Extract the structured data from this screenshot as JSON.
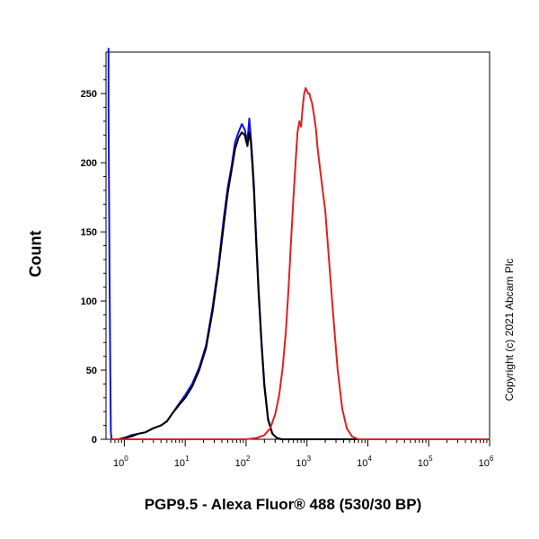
{
  "chart_data": {
    "type": "line",
    "title": "",
    "xlabel": "PGP9.5 - Alexa Fluor® 488 (530/30 BP)",
    "ylabel": "Count",
    "x_scale": "log",
    "x_ticks": [
      {
        "value": 1,
        "base": "10",
        "exp": "0"
      },
      {
        "value": 10,
        "base": "10",
        "exp": "1"
      },
      {
        "value": 100,
        "base": "10",
        "exp": "2"
      },
      {
        "value": 1000,
        "base": "10",
        "exp": "3"
      },
      {
        "value": 10000,
        "base": "10",
        "exp": "4"
      },
      {
        "value": 100000,
        "base": "10",
        "exp": "5"
      },
      {
        "value": 1000000,
        "base": "10",
        "exp": "6"
      }
    ],
    "y_ticks": [
      "0",
      "50",
      "100",
      "150",
      "200",
      "250"
    ],
    "xlim": [
      0.5,
      1000000
    ],
    "ylim": [
      0,
      280
    ],
    "grid": false,
    "series": [
      {
        "color": "#1010e0",
        "x": [
          0.55,
          0.55,
          0.57,
          0.59,
          0.6,
          0.62,
          0.65,
          0.7,
          0.8,
          1.0,
          1.3,
          1.7,
          2.2,
          3,
          4,
          5,
          6,
          8,
          10,
          13,
          17,
          22,
          28,
          35,
          43,
          50,
          58,
          66,
          75,
          85,
          95,
          105,
          113,
          120,
          128,
          135,
          145,
          160,
          180,
          200,
          230,
          270,
          320,
          380,
          450,
          520,
          700,
          1000,
          1000000
        ],
        "y": [
          283,
          240,
          120,
          40,
          5,
          0,
          0,
          0,
          0,
          1,
          3,
          4,
          5,
          8,
          10,
          13,
          18,
          26,
          32,
          40,
          52,
          68,
          95,
          125,
          160,
          182,
          198,
          215,
          222,
          228,
          224,
          215,
          232,
          218,
          200,
          182,
          150,
          110,
          70,
          40,
          15,
          4,
          1,
          0,
          0,
          0,
          0,
          0,
          0
        ]
      },
      {
        "color": "#000000",
        "x": [
          0.6,
          0.8,
          1.0,
          1.3,
          1.7,
          2.2,
          3,
          4,
          5,
          6,
          8,
          10,
          13,
          17,
          22,
          28,
          35,
          43,
          50,
          58,
          66,
          75,
          85,
          95,
          105,
          113,
          120,
          128,
          135,
          145,
          160,
          180,
          200,
          230,
          270,
          320,
          380,
          450,
          520,
          700,
          1000,
          1000000
        ],
        "y": [
          0,
          0,
          1,
          2,
          4,
          5,
          8,
          10,
          13,
          18,
          25,
          30,
          38,
          50,
          66,
          92,
          122,
          155,
          178,
          195,
          210,
          218,
          222,
          220,
          212,
          222,
          214,
          196,
          178,
          146,
          106,
          68,
          38,
          14,
          4,
          1,
          0,
          0,
          0,
          0,
          0,
          0
        ]
      },
      {
        "color": "#e02020",
        "x": [
          0.6,
          100,
          150,
          200,
          250,
          300,
          350,
          400,
          450,
          500,
          550,
          600,
          650,
          700,
          750,
          800,
          850,
          900,
          950,
          1000,
          1050,
          1100,
          1150,
          1200,
          1300,
          1400,
          1500,
          1700,
          2000,
          2300,
          2700,
          3200,
          3800,
          4500,
          5500,
          7000,
          10000,
          1000000
        ],
        "y": [
          0,
          0,
          1,
          3,
          8,
          18,
          32,
          52,
          78,
          110,
          145,
          175,
          200,
          222,
          230,
          226,
          240,
          250,
          254,
          252,
          250,
          250,
          246,
          244,
          235,
          225,
          210,
          190,
          165,
          130,
          90,
          50,
          22,
          8,
          2,
          0,
          0,
          0
        ]
      }
    ]
  },
  "copyright": "Copyright (c) 2021 Abcam Plc"
}
